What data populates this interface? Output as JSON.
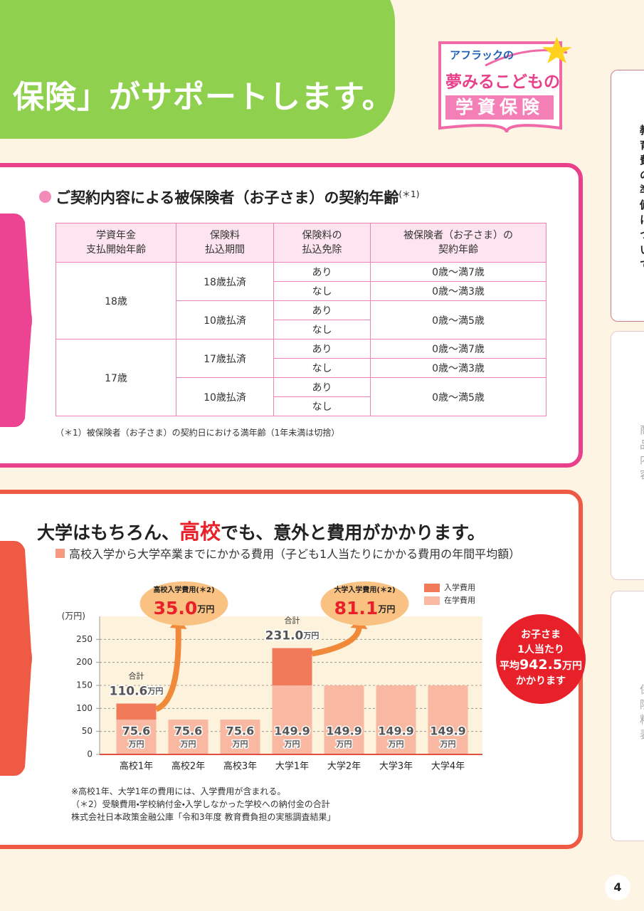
{
  "header": {
    "title": "保険」がサポートします。"
  },
  "logo": {
    "line1": "アフラックの",
    "line2": "夢みるこどもの",
    "line3": "学資保険"
  },
  "tabs": [
    "教育費の準備について",
    "商品内容",
    "保険料表"
  ],
  "contract_table": {
    "title": "ご契約内容による被保険者（お子さま）の契約年齢",
    "note_mark": "(＊1)",
    "headers": [
      [
        "学資年金",
        "支払開始年齢"
      ],
      [
        "保険料",
        "払込期間"
      ],
      [
        "保険料の",
        "払込免除"
      ],
      [
        "被保険者（お子さま）の",
        "契約年齢"
      ]
    ],
    "groups": [
      {
        "start_age": "18歳",
        "periods": [
          {
            "period": "18歳払済",
            "waivers": [
              "あり",
              "なし"
            ],
            "ages": [
              "0歳～満7歳",
              "0歳～満3歳"
            ]
          },
          {
            "period": "10歳払済",
            "waivers": [
              "あり",
              "なし"
            ],
            "ages": [
              "0歳～満5歳"
            ]
          }
        ]
      },
      {
        "start_age": "17歳",
        "periods": [
          {
            "period": "17歳払済",
            "waivers": [
              "あり",
              "なし"
            ],
            "ages": [
              "0歳～満7歳",
              "0歳～満3歳"
            ]
          },
          {
            "period": "10歳払済",
            "waivers": [
              "あり",
              "なし"
            ],
            "ages": [
              "0歳～満5歳"
            ]
          }
        ]
      }
    ],
    "footnote": "（＊1）被保険者（お子さま）の契約日における満年齢（1年未満は切捨）"
  },
  "cost_section": {
    "heading": [
      "大学はもちろん、",
      "高校",
      "でも、意外と費用がかかります。"
    ],
    "subtitle": "高校入学から大学卒業までにかかる費用（子ども1人当たりにかかる費用の年間平均額）",
    "badge": {
      "line1": "お子さま",
      "line2": "1人当たり",
      "avg_prefix": "平均",
      "avg": 942.5,
      "unit": "万円",
      "line4": "かかります"
    },
    "notes": [
      "※高校1年、大学1年の費用には、入学費用が含まれる。",
      "（＊2）受験費用・学校納付金・入学しなかった学校への納付金の合計",
      "株式会社日本政策金融公庫「令和3年度 教育費負担の実態調査結果」"
    ]
  },
  "chart_data": {
    "type": "bar",
    "stacked": true,
    "ylabel": "(万円)",
    "unit": "万円",
    "categories": [
      "高校1年",
      "高校2年",
      "高校3年",
      "大学1年",
      "大学2年",
      "大学3年",
      "大学4年"
    ],
    "series": [
      {
        "name": "入学費用",
        "color": "#f07a5a",
        "values": [
          35.0,
          null,
          null,
          81.1,
          null,
          null,
          null
        ],
        "value_labels": [
          "35.0",
          null,
          null,
          "81.1",
          null,
          null,
          null
        ]
      },
      {
        "name": "在学費用",
        "color": "#f8b8a2",
        "values": [
          75.6,
          75.6,
          75.6,
          149.9,
          149.9,
          149.9,
          149.9
        ]
      }
    ],
    "totals": [
      110.6,
      null,
      null,
      231.0,
      null,
      null,
      null
    ],
    "total_labels": [
      "110.6",
      null,
      null,
      "231.0",
      null,
      null,
      null
    ],
    "total_caption": "合計",
    "callout_titles": [
      "高校入学費用(＊2)",
      null,
      null,
      "大学入学費用(＊2)",
      null,
      null,
      null
    ],
    "ylim": [
      0,
      300
    ],
    "yticks": [
      0,
      50,
      100,
      150,
      200,
      250
    ],
    "grid": true,
    "legend": "top-right"
  },
  "page_number": 4
}
